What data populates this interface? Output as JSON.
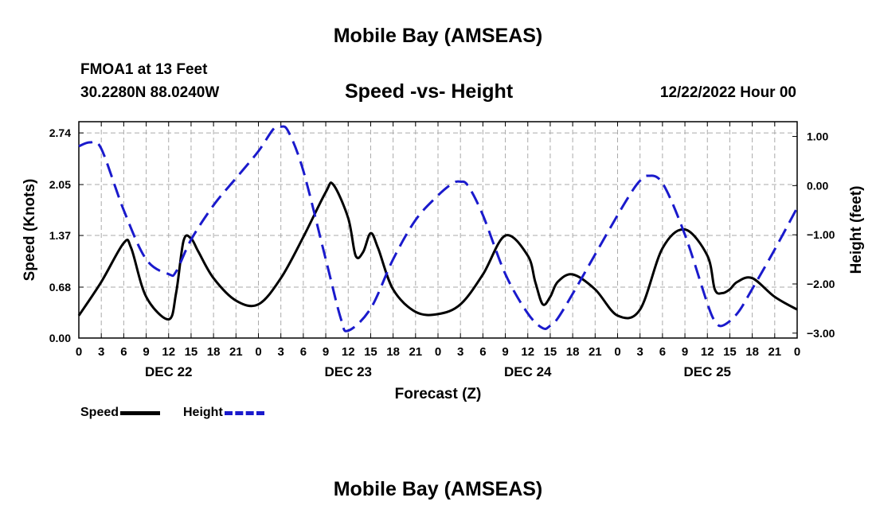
{
  "page": {
    "main_title": "Mobile Bay (AMSEAS)",
    "footer_title": "Mobile Bay (AMSEAS)",
    "station": "FMOA1 at 13 Feet",
    "coords": "30.2280N  88.0240W",
    "chart_title": "Speed -vs- Height",
    "run_time": "12/22/2022 Hour 00"
  },
  "chart_data": {
    "type": "line",
    "title": "Speed -vs- Height",
    "xlabel": "Forecast (Z)",
    "ylabel": "Speed (Knots)",
    "y2label": "Height (feet)",
    "xlim": [
      0,
      96
    ],
    "ylim": [
      0,
      2.89
    ],
    "y2lim": [
      -3.1,
      1.3
    ],
    "yticks": [
      0.0,
      0.68,
      1.37,
      2.05,
      2.74
    ],
    "ytick_labels": [
      "0.00",
      "0.68",
      "1.37",
      "2.05",
      "2.74"
    ],
    "y2ticks": [
      1.0,
      0.0,
      -1.0,
      -2.0,
      -3.0
    ],
    "y2tick_labels": [
      "1.00",
      "0.00",
      "−1.00",
      "−2.00",
      "−3.00"
    ],
    "xticks": [
      0,
      3,
      6,
      9,
      12,
      15,
      18,
      21,
      24,
      27,
      30,
      33,
      36,
      39,
      42,
      45,
      48,
      51,
      54,
      57,
      60,
      63,
      66,
      69,
      72,
      75,
      78,
      81,
      84,
      87,
      90,
      93,
      96
    ],
    "xtick_labels": [
      "0",
      "3",
      "6",
      "9",
      "12",
      "15",
      "18",
      "21",
      "0",
      "3",
      "6",
      "9",
      "12",
      "15",
      "18",
      "21",
      "0",
      "3",
      "6",
      "9",
      "12",
      "15",
      "18",
      "21",
      "0",
      "3",
      "6",
      "9",
      "12",
      "15",
      "18",
      "21",
      "0"
    ],
    "day_labels": [
      {
        "x": 12,
        "label": "DEC 22"
      },
      {
        "x": 36,
        "label": "DEC 23"
      },
      {
        "x": 60,
        "label": "DEC 24"
      },
      {
        "x": 84,
        "label": "DEC 25"
      }
    ],
    "grid": true,
    "series": [
      {
        "name": "Speed",
        "axis": "left",
        "color": "#000000",
        "dash": "solid",
        "x": [
          0,
          3,
          6,
          7,
          9,
          12,
          13,
          14,
          15,
          16,
          18,
          21,
          24,
          27,
          30,
          33,
          34,
          36,
          37,
          38,
          39,
          40,
          42,
          45,
          48,
          51,
          54,
          57,
          60,
          61,
          62,
          63,
          64,
          66,
          69,
          72,
          75,
          78,
          81,
          84,
          85,
          86,
          87,
          88,
          90,
          93,
          96
        ],
        "y": [
          0.3,
          0.75,
          1.27,
          1.2,
          0.55,
          0.25,
          0.6,
          1.3,
          1.33,
          1.15,
          0.8,
          0.5,
          0.45,
          0.8,
          1.35,
          1.95,
          2.05,
          1.6,
          1.1,
          1.15,
          1.4,
          1.2,
          0.65,
          0.35,
          0.32,
          0.45,
          0.85,
          1.37,
          1.1,
          0.75,
          0.45,
          0.55,
          0.75,
          0.85,
          0.65,
          0.3,
          0.38,
          1.2,
          1.45,
          1.1,
          0.65,
          0.6,
          0.65,
          0.75,
          0.8,
          0.55,
          0.38
        ]
      },
      {
        "name": "Height",
        "axis": "right",
        "color": "#1a1acc",
        "dash": "dashed",
        "x": [
          0,
          1.5,
          3,
          6,
          9,
          12,
          13,
          15,
          18,
          21,
          24,
          26,
          27,
          28,
          30,
          33,
          35,
          36,
          39,
          42,
          45,
          48,
          50,
          51,
          52,
          54,
          57,
          60,
          62,
          63,
          64,
          66,
          69,
          72,
          74,
          75,
          76,
          78,
          81,
          84,
          85,
          86,
          88,
          90,
          93,
          96
        ],
        "y": [
          0.8,
          0.88,
          0.75,
          -0.5,
          -1.5,
          -1.8,
          -1.75,
          -1.1,
          -0.4,
          0.15,
          0.7,
          1.15,
          1.2,
          1.1,
          0.3,
          -1.5,
          -2.7,
          -2.95,
          -2.5,
          -1.5,
          -0.7,
          -0.2,
          0.05,
          0.08,
          0.0,
          -0.6,
          -1.8,
          -2.6,
          -2.9,
          -2.85,
          -2.7,
          -2.2,
          -1.4,
          -0.6,
          -0.1,
          0.1,
          0.2,
          0.05,
          -1.0,
          -2.4,
          -2.75,
          -2.85,
          -2.6,
          -2.1,
          -1.3,
          -0.45
        ]
      }
    ],
    "legend": [
      {
        "label": "Speed",
        "color": "#000000",
        "style": "solid"
      },
      {
        "label": "Height",
        "color": "#1a1acc",
        "style": "dashed"
      }
    ],
    "legend_position": "bottom-left"
  }
}
